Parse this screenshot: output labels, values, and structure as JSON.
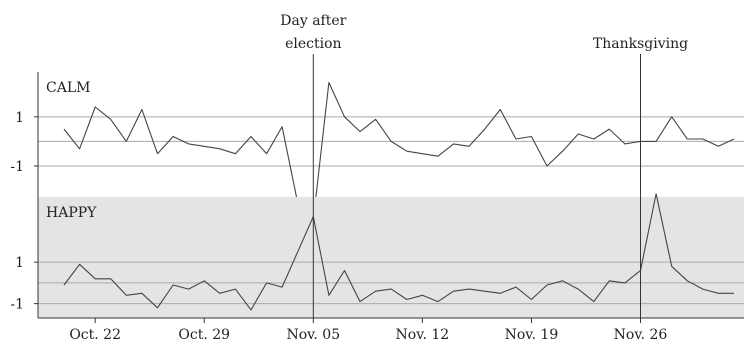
{
  "chart_data": {
    "type": "line",
    "x_dates": [
      "2008-10-20",
      "2008-10-21",
      "2008-10-22",
      "2008-10-23",
      "2008-10-24",
      "2008-10-25",
      "2008-10-26",
      "2008-10-27",
      "2008-10-28",
      "2008-10-29",
      "2008-10-30",
      "2008-10-31",
      "2008-11-01",
      "2008-11-02",
      "2008-11-03",
      "2008-11-04",
      "2008-11-05",
      "2008-11-06",
      "2008-11-07",
      "2008-11-08",
      "2008-11-09",
      "2008-11-10",
      "2008-11-11",
      "2008-11-12",
      "2008-11-13",
      "2008-11-14",
      "2008-11-15",
      "2008-11-16",
      "2008-11-17",
      "2008-11-18",
      "2008-11-19",
      "2008-11-20",
      "2008-11-21",
      "2008-11-22",
      "2008-11-23",
      "2008-11-24",
      "2008-11-25",
      "2008-11-26",
      "2008-11-27",
      "2008-11-28",
      "2008-11-29",
      "2008-11-30",
      "2008-12-01",
      "2008-12-02"
    ],
    "x_tick_labels": [
      {
        "date": "2008-10-22",
        "label": "Oct. 22"
      },
      {
        "date": "2008-10-29",
        "label": "Oct. 29"
      },
      {
        "date": "2008-11-05",
        "label": "Nov. 05"
      },
      {
        "date": "2008-11-12",
        "label": "Nov. 12"
      },
      {
        "date": "2008-11-19",
        "label": "Nov. 19"
      },
      {
        "date": "2008-11-26",
        "label": "Nov. 26"
      }
    ],
    "panels": [
      {
        "title": "CALM",
        "ylim": [
          -2.1,
          2.5
        ],
        "yticks": [
          1,
          -1
        ],
        "ytick_labels": [
          "1",
          "-1"
        ],
        "gridlines": [
          1,
          0,
          -1
        ],
        "shaded": false,
        "values": [
          0.5,
          -0.3,
          1.4,
          0.9,
          0.0,
          1.3,
          -0.5,
          0.2,
          -0.1,
          -0.2,
          -0.3,
          -0.5,
          0.2,
          -0.5,
          0.6,
          -2.5,
          -3.2,
          2.4,
          1.0,
          0.4,
          0.9,
          0.0,
          -0.4,
          -0.5,
          -0.6,
          -0.1,
          -0.2,
          0.5,
          1.3,
          0.1,
          0.2,
          -1.0,
          -0.4,
          0.3,
          0.1,
          0.5,
          -0.1,
          -0.0,
          -0.0,
          1.0,
          0.1,
          0.1,
          -0.2,
          0.1
        ]
      },
      {
        "title": "HAPPY",
        "ylim": [
          -1.5,
          4.0
        ],
        "yticks": [
          1,
          -1
        ],
        "ytick_labels": [
          "1",
          "-1"
        ],
        "gridlines": [
          1,
          0,
          -1
        ],
        "shaded": true,
        "values": [
          -0.1,
          0.9,
          0.2,
          0.2,
          -0.6,
          -0.5,
          -1.2,
          -0.1,
          -0.3,
          0.1,
          -0.5,
          -0.3,
          -1.3,
          0.0,
          -0.2,
          1.5,
          3.2,
          -0.6,
          0.6,
          -0.9,
          -0.4,
          -0.3,
          -0.8,
          -0.6,
          -0.9,
          -0.4,
          -0.3,
          -0.4,
          -0.5,
          -0.2,
          -0.8,
          -0.1,
          0.1,
          -0.3,
          -0.9,
          0.1,
          0.0,
          0.6,
          4.3,
          0.8,
          0.1,
          -0.3,
          -0.5,
          -0.5
        ]
      }
    ],
    "annotations": [
      {
        "date": "2008-11-05",
        "lines": [
          "Day after",
          "election"
        ]
      },
      {
        "date": "2008-11-26",
        "lines": [
          "Thanksgiving"
        ]
      }
    ]
  },
  "colors": {
    "line": "#444444",
    "gridline": "#aaaaaa",
    "shaded_panel": "#e4e4e4",
    "axis": "#333333",
    "text": "#222222"
  }
}
